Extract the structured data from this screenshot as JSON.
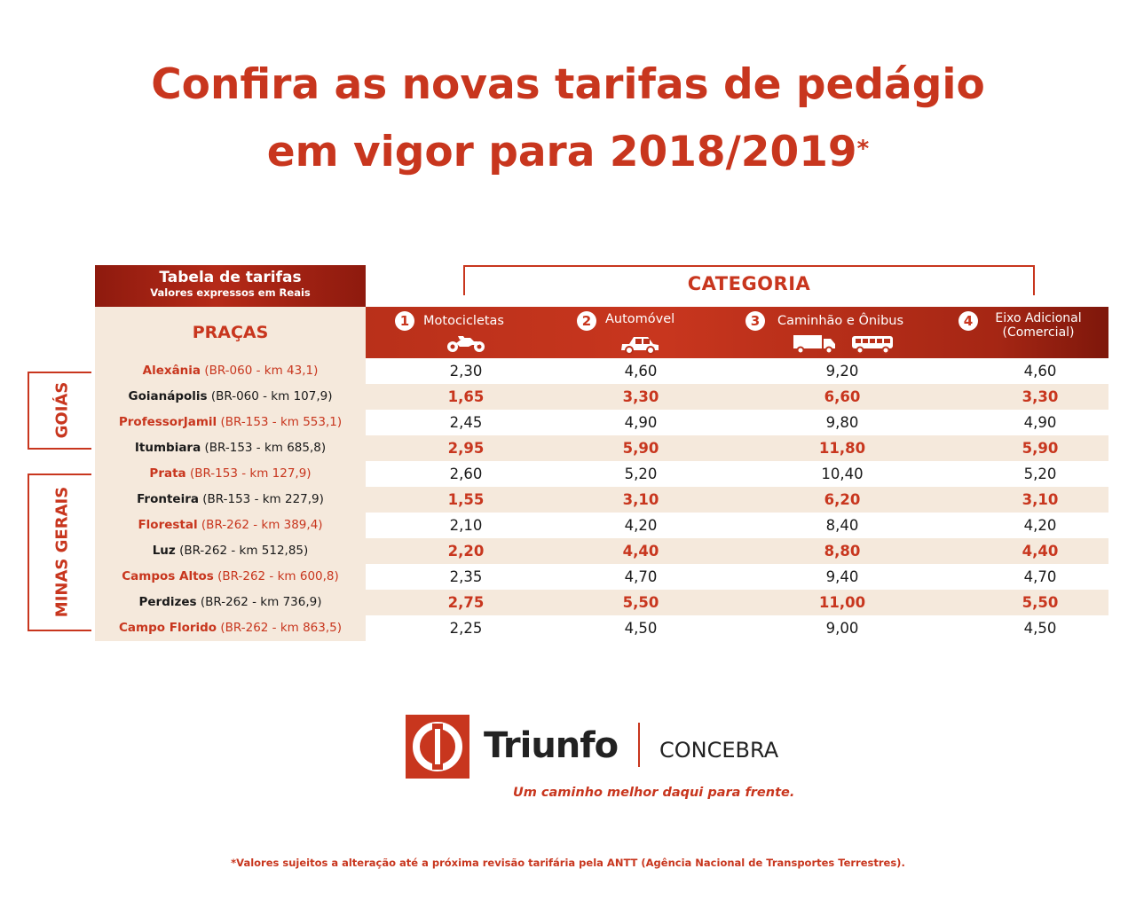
{
  "title": {
    "line1": "Confira as novas tarifas de pedágio",
    "line2": "em vigor para 2018/2019",
    "asterisk": "*"
  },
  "table": {
    "header_title": "Tabela de tarifas",
    "header_subtitle": "Valores expressos em Reais",
    "pracas_label": "PRAÇAS",
    "categoria_label": "CATEGORIA",
    "categories": [
      {
        "num": "1",
        "label": "Motocicletas",
        "icon": "motorcycle-icon"
      },
      {
        "num": "2",
        "label": "Automóvel",
        "icon": "car-icon"
      },
      {
        "num": "3",
        "label": "Caminhão e Ônibus",
        "icon": "truck-bus-icon"
      },
      {
        "num": "4",
        "label": "Eixo Adicional",
        "label2": "(Comercial)",
        "icon": ""
      }
    ],
    "states": [
      "GOIÁS",
      "MINAS GERAIS"
    ],
    "rows": [
      {
        "name": "Alexânia",
        "loc": " (BR-060 - km 43,1)",
        "values": [
          "2,30",
          "4,60",
          "9,20",
          "4,60"
        ]
      },
      {
        "name": "Goianápolis",
        "loc": " (BR-060 - km 107,9)",
        "values": [
          "1,65",
          "3,30",
          "6,60",
          "3,30"
        ]
      },
      {
        "name": "ProfessorJamil",
        "loc": " (BR-153 - km 553,1)",
        "values": [
          "2,45",
          "4,90",
          "9,80",
          "4,90"
        ]
      },
      {
        "name": "Itumbiara",
        "loc": " (BR-153 - km 685,8)",
        "values": [
          "2,95",
          "5,90",
          "11,80",
          "5,90"
        ]
      },
      {
        "name": "Prata",
        "loc": " (BR-153 - km 127,9)",
        "values": [
          "2,60",
          "5,20",
          "10,40",
          "5,20"
        ]
      },
      {
        "name": "Fronteira",
        "loc": " (BR-153 - km 227,9)",
        "values": [
          "1,55",
          "3,10",
          "6,20",
          "3,10"
        ]
      },
      {
        "name": "Florestal",
        "loc": " (BR-262 - km 389,4)",
        "values": [
          "2,10",
          "4,20",
          "8,40",
          "4,20"
        ]
      },
      {
        "name": "Luz",
        "loc": " (BR-262 - km 512,85)",
        "values": [
          "2,20",
          "4,40",
          "8,80",
          "4,40"
        ]
      },
      {
        "name": "Campos Altos",
        "loc": " (BR-262 - km 600,8)",
        "values": [
          "2,35",
          "4,70",
          "9,40",
          "4,70"
        ]
      },
      {
        "name": "Perdizes",
        "loc": " (BR-262 - km 736,9)",
        "values": [
          "2,75",
          "5,50",
          "11,00",
          "5,50"
        ]
      },
      {
        "name": "Campo Florido",
        "loc": " (BR-262 - km 863,5)",
        "values": [
          "2,25",
          "4,50",
          "9,00",
          "4,50"
        ]
      }
    ]
  },
  "brand": {
    "name": "Triunfo",
    "partner": "CONCEBRA",
    "slogan": "Um caminho melhor daqui para frente."
  },
  "footnote": "*Valores sujeitos a alteração até a próxima revisão tarifária pela ANTT (Agência Nacional de Transportes Terrestres).",
  "colors": {
    "accent": "#c8361e",
    "row_alt": "#f5e9dc"
  }
}
